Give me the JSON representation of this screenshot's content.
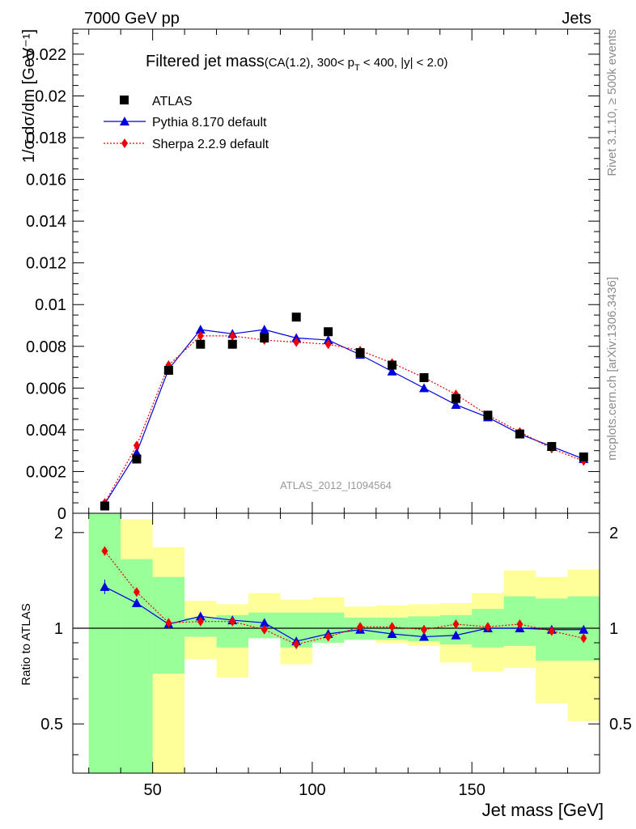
{
  "header": {
    "left": "7000 GeV pp",
    "right": "Jets"
  },
  "side_labels": {
    "rivet": "Rivet 3.1.10, ≥ 500k events",
    "mcplots": "mcplots.cern.ch [arXiv:1306.3436]"
  },
  "watermark": "ATLAS_2012_I1094564",
  "main_title": {
    "text": "Filtered jet mass",
    "sub": "(CA(1.2), 300< p",
    "sub_T": "T",
    "sub_rest": " < 400, |y| < 2.0)"
  },
  "chart_data": {
    "type": "line",
    "xlabel": "Jet mass [GeV]",
    "ylabel": "1/σ dσ/dm [GeV⁻¹]",
    "ratio_ylabel": "Ratio to ATLAS",
    "xlim": [
      25,
      190
    ],
    "ylim": [
      0,
      0.0232
    ],
    "ratio_ylim": [
      0.35,
      2.3
    ],
    "x_ticks": [
      50,
      100,
      150
    ],
    "y_ticks": [
      "0",
      "0.002",
      "0.004",
      "0.006",
      "0.008",
      "0.01",
      "0.012",
      "0.014",
      "0.016",
      "0.018",
      "0.02",
      "0.022"
    ],
    "ratio_ticks": [
      "0.5",
      "1",
      "2"
    ],
    "bin_edges": [
      30,
      40,
      50,
      60,
      70,
      80,
      90,
      100,
      110,
      120,
      130,
      140,
      150,
      160,
      170,
      180,
      190
    ],
    "x": [
      35,
      45,
      55,
      65,
      75,
      85,
      95,
      105,
      115,
      125,
      135,
      145,
      155,
      165,
      175,
      185
    ],
    "legend": [
      "ATLAS",
      "Pythia 8.170 default",
      "Sherpa 2.2.9 default"
    ],
    "colors": {
      "atlas": "#000000",
      "pythia": "#0000dd",
      "sherpa": "#ee0000",
      "band_inner": "#99ff99",
      "band_outer": "#ffff99"
    },
    "series": [
      {
        "name": "ATLAS",
        "values": [
          0.00035,
          0.0026,
          0.00685,
          0.0081,
          0.0081,
          0.0084,
          0.0094,
          0.0087,
          0.0077,
          0.0071,
          0.0065,
          0.0055,
          0.0047,
          0.0038,
          0.0032,
          0.0027
        ]
      },
      {
        "name": "Pythia 8.170 default",
        "values": [
          0.00045,
          0.0029,
          0.0069,
          0.0088,
          0.0086,
          0.0088,
          0.0084,
          0.0083,
          0.0076,
          0.0068,
          0.006,
          0.0052,
          0.0046,
          0.0038,
          0.0032,
          0.0026
        ]
      },
      {
        "name": "Sherpa 2.2.9 default",
        "values": [
          0.0005,
          0.00325,
          0.0071,
          0.0085,
          0.0085,
          0.0083,
          0.0082,
          0.0081,
          0.0078,
          0.0072,
          0.0065,
          0.0057,
          0.0047,
          0.0039,
          0.0031,
          0.0025
        ]
      }
    ],
    "ratio_series": [
      {
        "name": "Pythia 8.170 default",
        "values": [
          1.35,
          1.2,
          1.03,
          1.09,
          1.06,
          1.04,
          0.91,
          0.96,
          0.99,
          0.96,
          0.94,
          0.95,
          1.0,
          1.0,
          0.99,
          0.99
        ]
      },
      {
        "name": "Sherpa 2.2.9 default",
        "values": [
          1.75,
          1.3,
          1.04,
          1.05,
          1.05,
          0.99,
          0.89,
          0.94,
          1.01,
          1.01,
          0.99,
          1.03,
          1.01,
          1.03,
          0.98,
          0.93
        ]
      }
    ],
    "band_inner": [
      [
        0.35,
        2.3
      ],
      [
        0.35,
        1.65
      ],
      [
        0.72,
        1.45
      ],
      [
        0.94,
        1.08
      ],
      [
        0.87,
        1.1
      ],
      [
        0.93,
        1.12
      ],
      [
        0.87,
        1.12
      ],
      [
        0.9,
        1.12
      ],
      [
        0.92,
        1.08
      ],
      [
        0.92,
        1.08
      ],
      [
        0.91,
        1.09
      ],
      [
        0.89,
        1.1
      ],
      [
        0.87,
        1.15
      ],
      [
        0.88,
        1.26
      ],
      [
        0.79,
        1.24
      ],
      [
        0.79,
        1.26
      ]
    ],
    "band_outer": [
      [
        0.35,
        2.3
      ],
      [
        0.35,
        2.2
      ],
      [
        0.35,
        1.8
      ],
      [
        0.8,
        1.22
      ],
      [
        0.7,
        1.19
      ],
      [
        0.95,
        1.29
      ],
      [
        0.77,
        1.23
      ],
      [
        0.9,
        1.25
      ],
      [
        0.92,
        1.17
      ],
      [
        0.9,
        1.18
      ],
      [
        0.88,
        1.19
      ],
      [
        0.78,
        1.2
      ],
      [
        0.73,
        1.29
      ],
      [
        0.75,
        1.52
      ],
      [
        0.58,
        1.45
      ],
      [
        0.51,
        1.53
      ]
    ]
  }
}
